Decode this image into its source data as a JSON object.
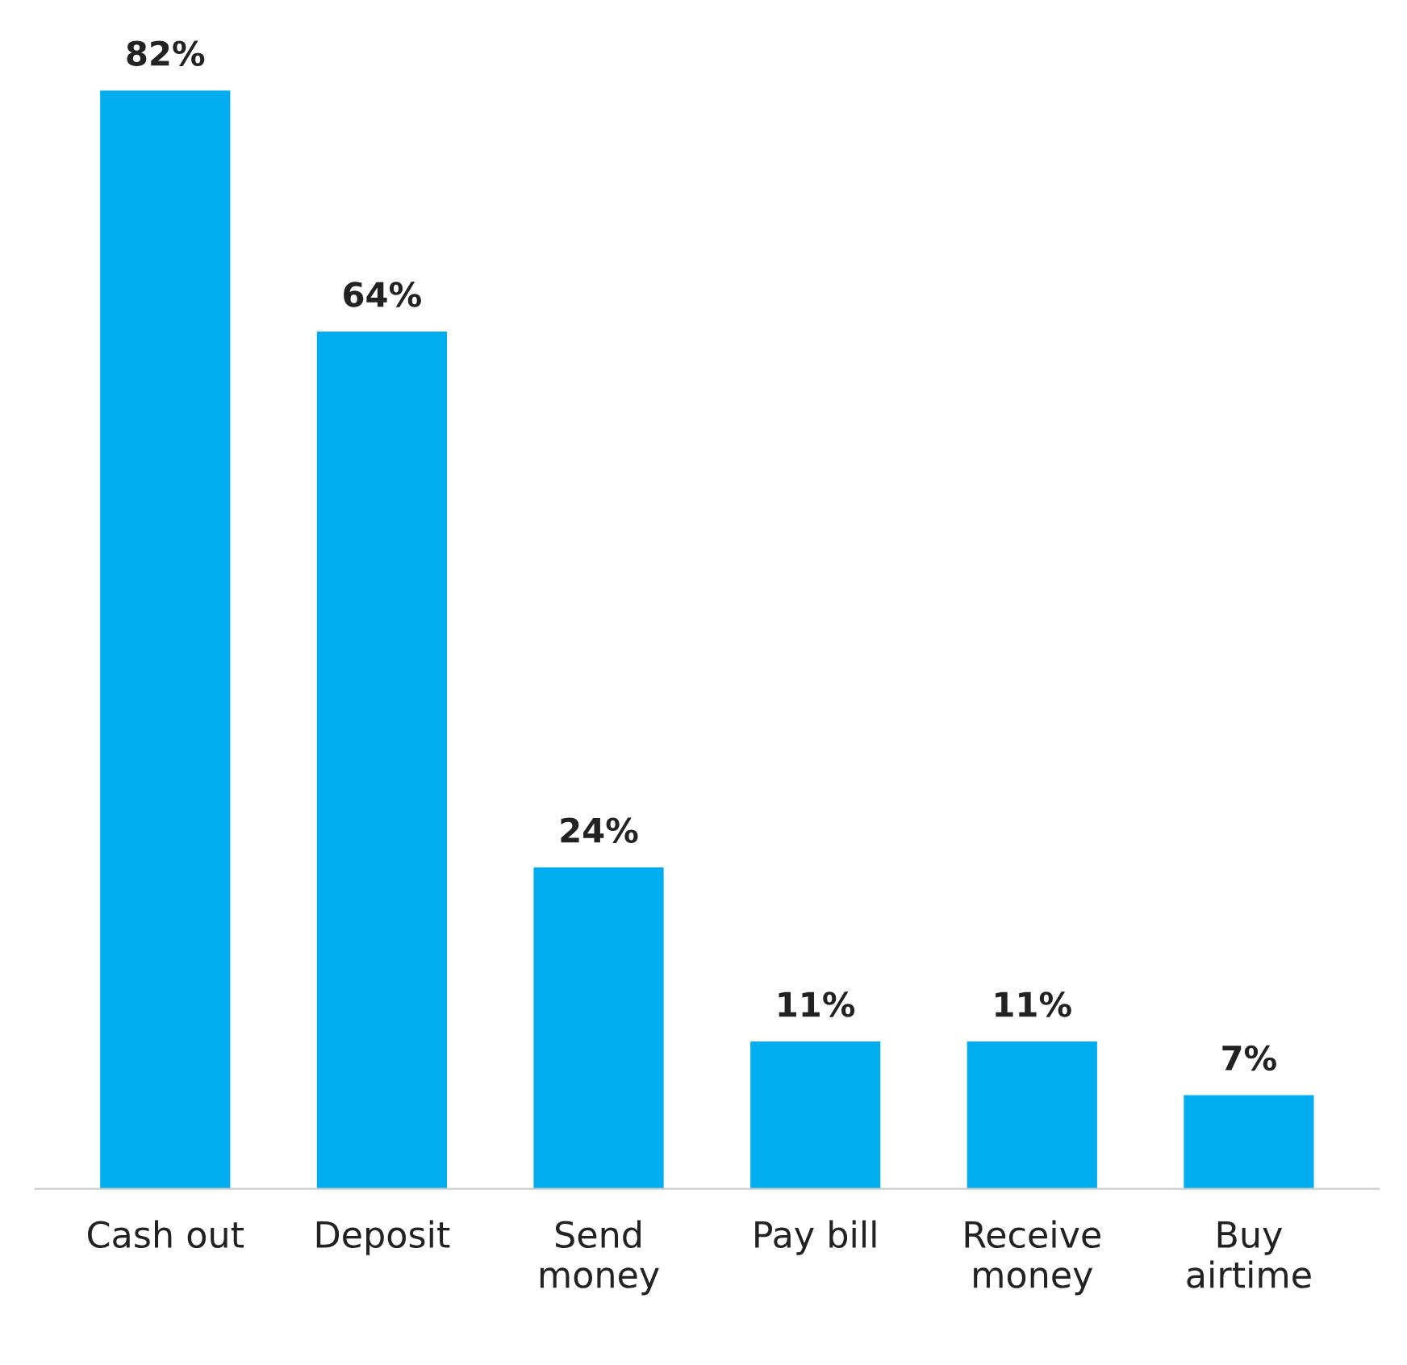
{
  "chart_data": {
    "type": "bar",
    "categories": [
      "Cash out",
      "Deposit",
      "Send\nmoney",
      "Pay bill",
      "Receive\nmoney",
      "Buy\nairtime"
    ],
    "values": [
      82,
      64,
      24,
      11,
      11,
      7
    ],
    "value_labels": [
      "82%",
      "64%",
      "24%",
      "11%",
      "11%",
      "7%"
    ],
    "color": "#00aeef",
    "legend": false
  }
}
